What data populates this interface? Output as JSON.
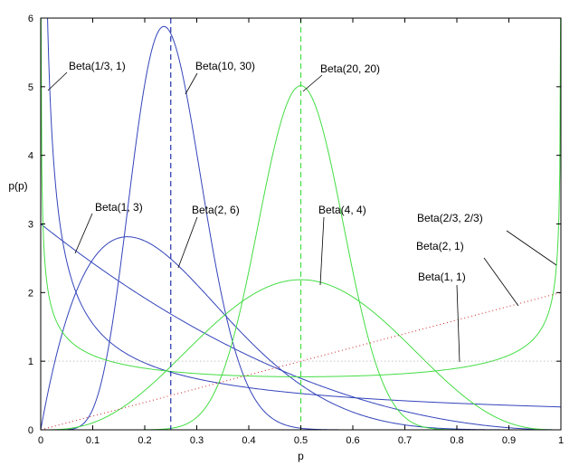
{
  "chart_data": {
    "type": "line",
    "xlabel": "p",
    "ylabel": "p(p)",
    "xlim": [
      0,
      1
    ],
    "ylim": [
      0,
      6
    ],
    "xticks": [
      "0",
      "0.1",
      "0.2",
      "0.3",
      "0.4",
      "0.5",
      "0.6",
      "0.7",
      "0.8",
      "0.9",
      "1"
    ],
    "yticks": [
      "0",
      "1",
      "2",
      "3",
      "4",
      "5",
      "6"
    ],
    "grid": false,
    "legend": "none",
    "series": [
      {
        "name": "Beta(1/3, 1)",
        "alpha": 0.3333,
        "beta": 1,
        "color": "#3344bb",
        "style": "solid",
        "label_x": 0.31,
        "label_y": 5.4,
        "point_x": 0.03,
        "point_y": 2.17
      },
      {
        "name": "Beta(10, 30)",
        "alpha": 10,
        "beta": 30,
        "color": "#3344bb",
        "style": "solid",
        "label_x": 0.64,
        "label_y": 5.4,
        "point_x": 0.28,
        "point_y": 4.58
      },
      {
        "name": "Beta(1, 3)",
        "alpha": 1,
        "beta": 3,
        "color": "#3344bb",
        "style": "solid",
        "label_x": 0.31,
        "label_y": 2.6,
        "point_x": 0.07,
        "point_y": 2.61
      },
      {
        "name": "Beta(2, 6)",
        "alpha": 2,
        "beta": 6,
        "color": "#3344bb",
        "style": "solid",
        "label_x": 0.58,
        "label_y": 2.6,
        "point_x": 0.25,
        "point_y": 2.39
      },
      {
        "name": "Beta(20, 20)",
        "alpha": 20,
        "beta": 20,
        "color": "#44dd44",
        "style": "solid",
        "label_x": 0.94,
        "label_y": 5.4,
        "point_x": 0.5,
        "point_y": 5.01
      },
      {
        "name": "Beta(4, 4)",
        "alpha": 4,
        "beta": 4,
        "color": "#44dd44",
        "style": "solid",
        "label_x": 0.94,
        "label_y": 2.6,
        "point_x": 0.53,
        "point_y": 2.15
      },
      {
        "name": "Beta(2/3, 2/3)",
        "alpha": 0.6667,
        "beta": 0.6667,
        "color": "#44dd44",
        "style": "solid",
        "label_x": 1.4,
        "label_y": 2.55,
        "point_x": 0.995,
        "point_y": 2.45
      },
      {
        "name": "Beta(2, 1)",
        "alpha": 2,
        "beta": 1,
        "color": "#cc2222",
        "style": "dotted",
        "label_x": 1.4,
        "label_y": 2.2,
        "point_x": 0.9,
        "point_y": 1.83
      },
      {
        "name": "Beta(1, 1)",
        "alpha": 1,
        "beta": 1,
        "color": "#aaaaaa",
        "style": "dotted",
        "label_x": 1.4,
        "label_y": 1.8,
        "point_x": 0.8,
        "point_y": 1.03
      }
    ],
    "vlines": [
      {
        "x": 0.25,
        "color": "#2233aa",
        "style": "dashed"
      },
      {
        "x": 0.5,
        "color": "#44dd44",
        "style": "dashed"
      }
    ]
  }
}
